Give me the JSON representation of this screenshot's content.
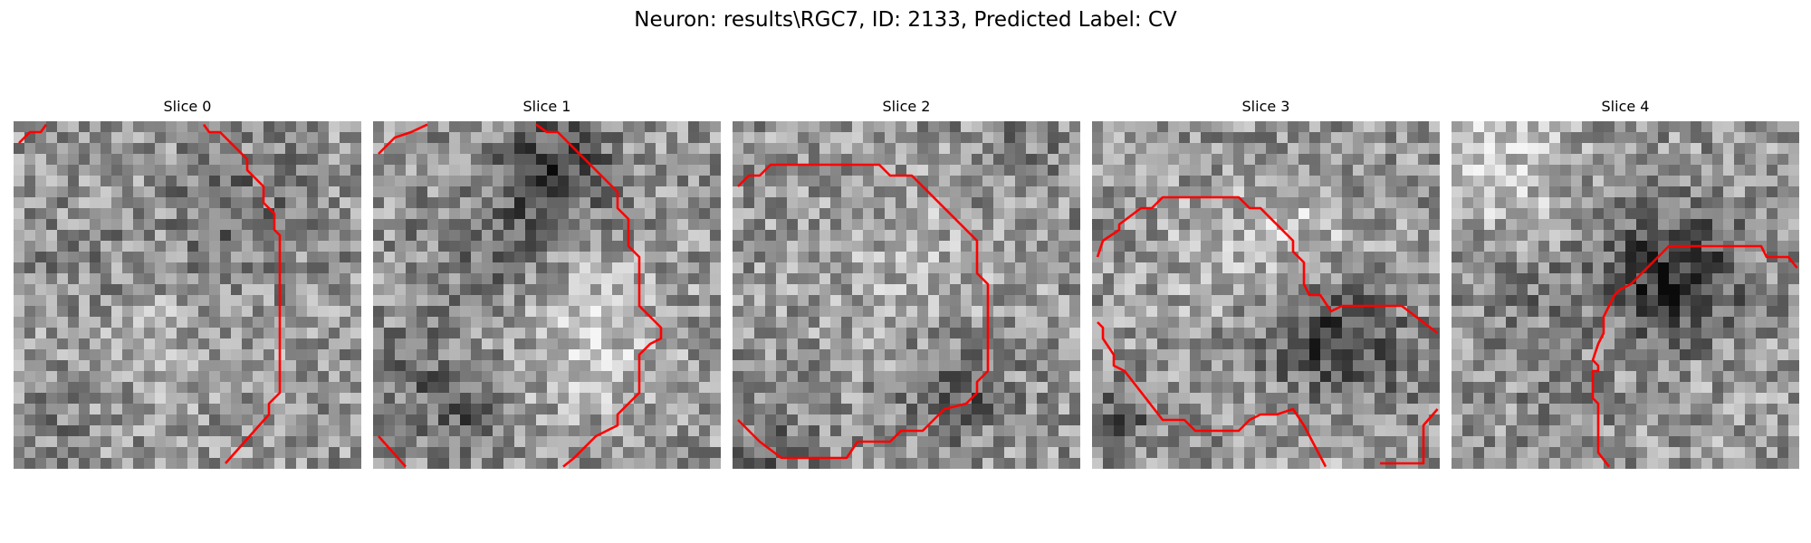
{
  "figure": {
    "title": "Neuron: results\\RGC7, ID: 2133, Predicted Label: CV"
  },
  "panels": [
    {
      "title": "Slice 0",
      "image_alt": "grayscale noisy microscopy slice with red contour on right side",
      "seed": 11
    },
    {
      "title": "Slice 1",
      "image_alt": "grayscale microscopy slice with dark blob top center and red contour on right",
      "seed": 29
    },
    {
      "title": "Slice 2",
      "image_alt": "grayscale microscopy slice with large closed red contour",
      "seed": 47
    },
    {
      "title": "Slice 3",
      "image_alt": "grayscale microscopy slice with two cells and red contours",
      "seed": 83
    },
    {
      "title": "Slice 4",
      "image_alt": "grayscale microscopy slice with dark curved band and red contour",
      "seed": 101
    }
  ],
  "colors": {
    "contour": "#ff0000",
    "background": "#ffffff"
  }
}
